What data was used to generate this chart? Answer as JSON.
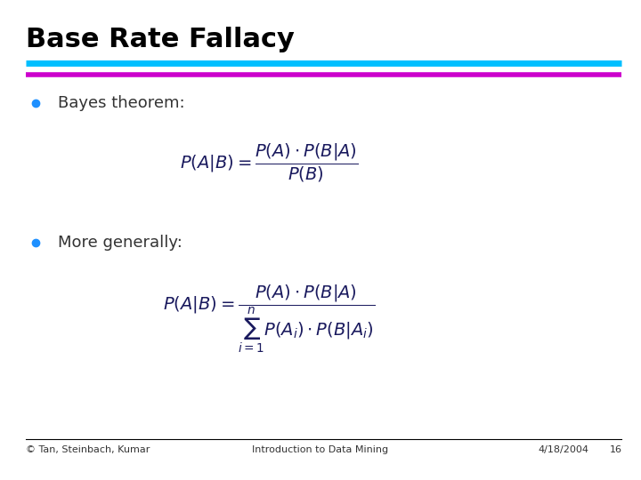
{
  "title": "Base Rate Fallacy",
  "title_color": "#000000",
  "title_fontsize": 22,
  "line1_color": "#00BFFF",
  "line2_color": "#CC00CC",
  "bullet_color": "#1E90FF",
  "bullet1_text": "Bayes theorem:",
  "bullet2_text": "More generally:",
  "footer_left": "© Tan, Steinbach, Kumar",
  "footer_center": "Introduction to Data Mining",
  "footer_right": "4/18/2004",
  "footer_page": "16",
  "bg_color": "#FFFFFF",
  "text_color": "#333333",
  "formula_color": "#1a1a5e",
  "footer_line_color": "#000000"
}
